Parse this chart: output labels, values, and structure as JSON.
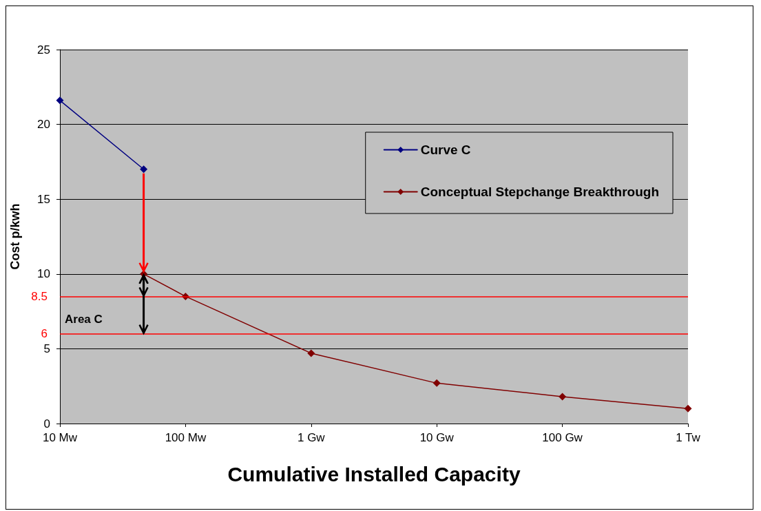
{
  "chart_data": {
    "type": "line",
    "xlabel": "Cumulative Installed Capacity",
    "ylabel": "Cost p/kwh",
    "categories": [
      "10 Mw",
      null,
      null,
      "100 Mw",
      null,
      null,
      "1 Gw",
      null,
      null,
      "10 Gw",
      null,
      null,
      "100 Gw",
      null,
      null,
      "1 Tw"
    ],
    "ylim": [
      0,
      25
    ],
    "yticks": [
      0,
      5,
      10,
      15,
      20,
      25
    ],
    "grid": "y",
    "legend": "top right",
    "marker": "diamond",
    "series": [
      {
        "name": "Curve C",
        "color": "#000080",
        "values": [
          21.6,
          null,
          17,
          null,
          null,
          null,
          null,
          null,
          null,
          null,
          null,
          null,
          null,
          null,
          null,
          null
        ]
      },
      {
        "name": "Conceptual Stepchange Breakthrough",
        "color": "#800000",
        "values": [
          null,
          null,
          10,
          8.5,
          null,
          null,
          4.7,
          null,
          null,
          2.7,
          null,
          null,
          1.8,
          null,
          null,
          1.0
        ]
      }
    ],
    "ref_lines": [
      {
        "axis": "y",
        "value": 8.5,
        "label": "8.5",
        "color": "#ff0000"
      },
      {
        "axis": "y",
        "value": 6,
        "label": "6",
        "color": "#ff0000"
      }
    ],
    "annotations": [
      "Area C"
    ]
  }
}
